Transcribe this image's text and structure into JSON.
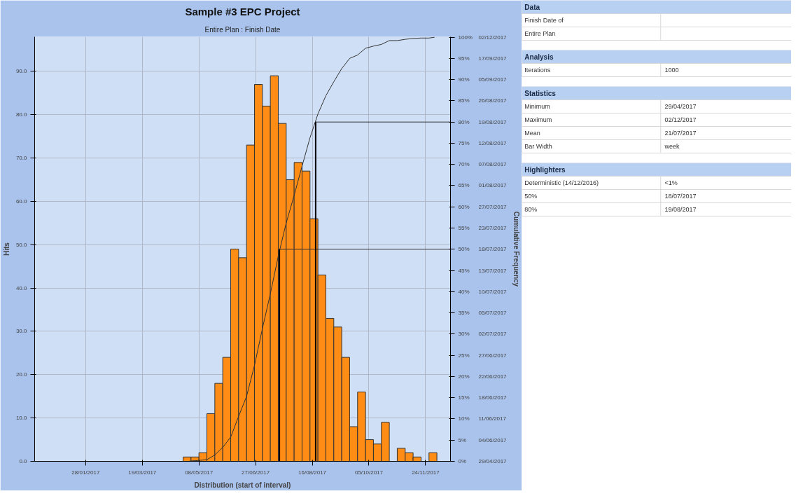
{
  "chart_data": [
    {
      "type": "histogram",
      "title": "Sample #3 EPC Project",
      "subtitle": "Entire Plan : Finish Date",
      "xlabel": "Distribution (start of interval)",
      "ylabel": "Hits",
      "y2label": "Cumulative Frequency",
      "bins": [
        "2017-04-24",
        "2017-05-01",
        "2017-05-08",
        "2017-05-15",
        "2017-05-22",
        "2017-05-29",
        "2017-06-05",
        "2017-06-12",
        "2017-06-19",
        "2017-06-26",
        "2017-07-03",
        "2017-07-10",
        "2017-07-17",
        "2017-07-24",
        "2017-07-31",
        "2017-08-07",
        "2017-08-14",
        "2017-08-21",
        "2017-08-28",
        "2017-09-04",
        "2017-09-11",
        "2017-09-18",
        "2017-09-25",
        "2017-10-02",
        "2017-10-09",
        "2017-10-16",
        "2017-10-23",
        "2017-10-30",
        "2017-11-06",
        "2017-11-13",
        "2017-11-20",
        "2017-11-27",
        "2017-12-04"
      ],
      "values": [
        1,
        1,
        2,
        11,
        18,
        24,
        49,
        47,
        73,
        87,
        82,
        89,
        78,
        65,
        69,
        67,
        56,
        43,
        33,
        31,
        24,
        8,
        16,
        5,
        4,
        9,
        0,
        3,
        2,
        1,
        0,
        2
      ],
      "color": "#ff8c14",
      "series": [
        {
          "type": "line",
          "axis": "y2",
          "color": "#333333",
          "x": [
            "2017-04-29",
            "2017-05-01",
            "2017-05-08",
            "2017-05-15",
            "2017-05-22",
            "2017-05-29",
            "2017-06-05",
            "2017-06-12",
            "2017-06-19",
            "2017-06-26",
            "2017-07-03",
            "2017-07-10",
            "2017-07-17",
            "2017-07-24",
            "2017-07-31",
            "2017-08-07",
            "2017-08-14",
            "2017-08-21",
            "2017-08-28",
            "2017-09-04",
            "2017-09-11",
            "2017-09-18",
            "2017-09-25",
            "2017-10-02",
            "2017-10-09",
            "2017-10-16",
            "2017-10-23",
            "2017-10-30",
            "2017-11-06",
            "2017-11-13",
            "2017-11-20",
            "2017-11-27",
            "2017-12-02"
          ],
          "values": [
            0,
            0.1,
            0.2,
            0.4,
            1.5,
            3.3,
            5.7,
            10.6,
            15.3,
            22.6,
            31.3,
            39.5,
            48.4,
            56.2,
            62.7,
            69.6,
            76.3,
            81.9,
            86.2,
            89.5,
            92.6,
            95.0,
            95.8,
            97.4,
            97.9,
            98.3,
            99.2,
            99.2,
            99.5,
            99.7,
            99.8,
            99.8,
            100
          ]
        }
      ],
      "xlim": [
        "2016-12-14",
        "2017-12-16"
      ],
      "xticks": [
        {
          "value": "2017-01-28",
          "label": "28/01/2017"
        },
        {
          "value": "2017-03-19",
          "label": "19/03/2017"
        },
        {
          "value": "2017-05-08",
          "label": "08/05/2017"
        },
        {
          "value": "2017-06-27",
          "label": "27/06/2017"
        },
        {
          "value": "2017-08-16",
          "label": "16/08/2017"
        },
        {
          "value": "2017-10-05",
          "label": "05/10/2017"
        },
        {
          "value": "2017-11-24",
          "label": "24/11/2017"
        }
      ],
      "ylim": [
        0,
        98
      ],
      "yticks": [
        {
          "value": 0,
          "label": "0.0"
        },
        {
          "value": 10,
          "label": "10.0"
        },
        {
          "value": 20,
          "label": "20.0"
        },
        {
          "value": 30,
          "label": "30.0"
        },
        {
          "value": 40,
          "label": "40.0"
        },
        {
          "value": 50,
          "label": "50.0"
        },
        {
          "value": 60,
          "label": "60.0"
        },
        {
          "value": 70,
          "label": "70.0"
        },
        {
          "value": 80,
          "label": "80.0"
        },
        {
          "value": 90,
          "label": "90.0"
        }
      ],
      "y2lim": [
        0,
        100.1
      ],
      "y2ticks": [
        {
          "value": 0,
          "label": "0%"
        },
        {
          "value": 5,
          "label": "5%"
        },
        {
          "value": 10,
          "label": "10%"
        },
        {
          "value": 15,
          "label": "15%"
        },
        {
          "value": 20,
          "label": "20%"
        },
        {
          "value": 25,
          "label": "25%"
        },
        {
          "value": 30,
          "label": "30%"
        },
        {
          "value": 35,
          "label": "35%"
        },
        {
          "value": 40,
          "label": "40%"
        },
        {
          "value": 45,
          "label": "45%"
        },
        {
          "value": 50,
          "label": "50%"
        },
        {
          "value": 55,
          "label": "55%"
        },
        {
          "value": 60,
          "label": "60%"
        },
        {
          "value": 65,
          "label": "65%"
        },
        {
          "value": 70,
          "label": "70%"
        },
        {
          "value": 75,
          "label": "75%"
        },
        {
          "value": 80,
          "label": "80%"
        },
        {
          "value": 85,
          "label": "85%"
        },
        {
          "value": 90,
          "label": "90%"
        },
        {
          "value": 95,
          "label": "95%"
        },
        {
          "value": 100,
          "label": "100%"
        }
      ],
      "annotations": [
        "29/04/2017",
        "04/06/2017",
        "11/06/2017",
        "18/06/2017",
        "22/06/2017",
        "27/06/2017",
        "02/07/2017",
        "05/07/2017",
        "10/07/2017",
        "13/07/2017",
        "18/07/2017",
        "23/07/2017",
        "27/07/2017",
        "01/08/2017",
        "07/08/2017",
        "12/08/2017",
        "19/08/2017",
        "26/08/2017",
        "05/09/2017",
        "17/09/2017",
        "02/12/2017"
      ],
      "ref_lines": [
        {
          "axis": "x",
          "value": "2017-07-18",
          "color": "#000000"
        },
        {
          "axis": "x",
          "value": "2017-08-19",
          "color": "#000000"
        },
        {
          "axis": "y2",
          "value": 50,
          "color": "#333333"
        },
        {
          "axis": "y2",
          "value": 80,
          "color": "#333333"
        }
      ],
      "grid": true
    },
    {
      "type": "other",
      "title": "Data",
      "categories": [
        "Finish Date of"
      ],
      "value_labels": [
        "Entire Plan"
      ]
    },
    {
      "type": "other",
      "title": "Analysis",
      "categories": [
        "Iterations"
      ],
      "value_labels": [
        "1000"
      ]
    },
    {
      "type": "other",
      "title": "Statistics",
      "categories": [
        "Minimum",
        "Maximum",
        "Mean",
        "Bar Width"
      ],
      "value_labels": [
        "29/04/2017",
        "02/12/2017",
        "21/07/2017",
        "week"
      ]
    },
    {
      "type": "other",
      "title": "Highlighters",
      "categories": [
        "Deterministic (14/12/2016)",
        "50%",
        "80%"
      ],
      "value_labels": [
        "<1%",
        "18/07/2017",
        "19/08/2017"
      ]
    }
  ]
}
